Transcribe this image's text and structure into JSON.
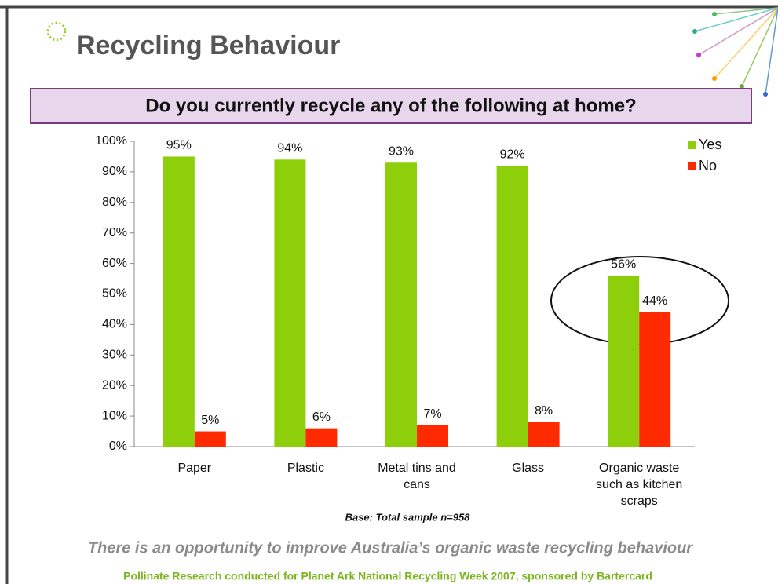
{
  "slide": {
    "title": "Recycling Behaviour",
    "caption": "There is an opportunity to improve Australia’s organic waste recycling behaviour",
    "credit": "Pollinate Research conducted for Planet Ark National Recycling Week 2007, sponsored by Bartercard"
  },
  "chart_data": {
    "type": "bar",
    "title": "Do you currently recycle any of the following at home?",
    "note": "Base: Total sample n=958",
    "categories": [
      "Paper",
      "Plastic",
      "Metal tins and cans",
      "Glass",
      "Organic waste such as kitchen scraps"
    ],
    "series": [
      {
        "name": "Yes",
        "color": "#8ccf0a",
        "values": [
          95,
          94,
          93,
          92,
          56
        ],
        "value_labels": [
          "95%",
          "94%",
          "93%",
          "92%",
          "56%"
        ]
      },
      {
        "name": "No",
        "color": "#ff2a00",
        "values": [
          5,
          6,
          7,
          8,
          44
        ],
        "value_labels": [
          "5%",
          "6%",
          "7%",
          "8%",
          "44%"
        ]
      }
    ],
    "ylim": [
      0,
      100
    ],
    "yticks": [
      {
        "value": 0,
        "label": "0%"
      },
      {
        "value": 10,
        "label": "10%"
      },
      {
        "value": 20,
        "label": "20%"
      },
      {
        "value": 30,
        "label": "30%"
      },
      {
        "value": 40,
        "label": "40%"
      },
      {
        "value": 50,
        "label": "50%"
      },
      {
        "value": 60,
        "label": "60%"
      },
      {
        "value": 70,
        "label": "70%"
      },
      {
        "value": 80,
        "label": "80%"
      },
      {
        "value": 90,
        "label": "90%"
      },
      {
        "value": 100,
        "label": "100%"
      }
    ],
    "legend": "top-right"
  }
}
